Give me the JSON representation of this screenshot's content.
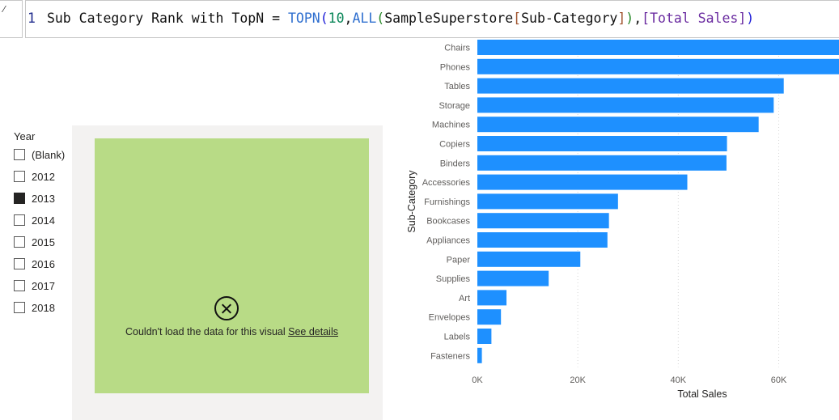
{
  "formula": {
    "line_number": "1",
    "measure_name": "Sub Category Rank with TopN",
    "equals": "=",
    "fn_topn": "TOPN",
    "open1": "(",
    "n": "10",
    "comma1": ",",
    "fn_all": "ALL",
    "open2": "(",
    "table": "SampleSuperstore",
    "col_open": "[",
    "column": "Sub-Category",
    "col_close": "]",
    "close2": ")",
    "comma2": ",",
    "measure_ref": "[Total Sales]",
    "close1": ")"
  },
  "slicer": {
    "title": "Year",
    "items": [
      {
        "label": "(Blank)",
        "checked": false
      },
      {
        "label": "2012",
        "checked": false
      },
      {
        "label": "2013",
        "checked": true
      },
      {
        "label": "2014",
        "checked": false
      },
      {
        "label": "2015",
        "checked": false
      },
      {
        "label": "2016",
        "checked": false
      },
      {
        "label": "2017",
        "checked": false
      },
      {
        "label": "2018",
        "checked": false
      }
    ]
  },
  "error_visual": {
    "message": "Couldn't load the data for this visual",
    "link_text": "See details",
    "icon": "error-circle-x-icon"
  },
  "chart_data": {
    "type": "bar",
    "orientation": "horizontal",
    "categories": [
      "Chairs",
      "Phones",
      "Tables",
      "Storage",
      "Machines",
      "Copiers",
      "Binders",
      "Accessories",
      "Furnishings",
      "Bookcases",
      "Appliances",
      "Paper",
      "Supplies",
      "Art",
      "Envelopes",
      "Labels",
      "Fasteners"
    ],
    "values": [
      74000,
      73000,
      61000,
      59000,
      56000,
      49700,
      49600,
      41800,
      28000,
      26200,
      25900,
      20500,
      14200,
      5800,
      4700,
      2800,
      900
    ],
    "xlabel": "Total Sales",
    "ylabel": "Sub-Category",
    "xticks": [
      "0K",
      "20K",
      "40K",
      "60K"
    ],
    "xlim": [
      0,
      72000
    ],
    "grid": true,
    "bar_color": "#1e90ff"
  }
}
